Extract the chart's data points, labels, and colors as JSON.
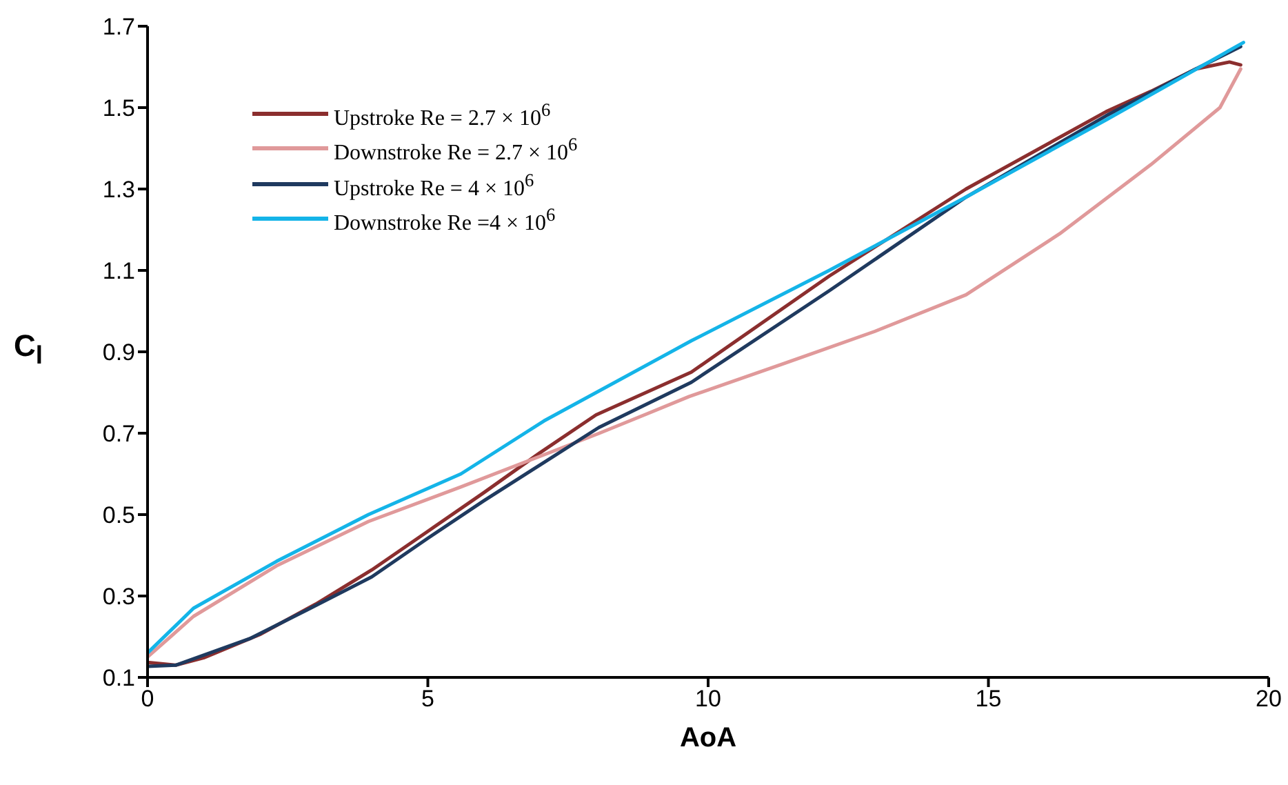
{
  "chart_data": {
    "type": "line",
    "xlabel": "AoA",
    "ylabel": "C$_{l}$",
    "xlim": [
      0,
      20
    ],
    "xticks": [
      0,
      5,
      10,
      15,
      20
    ],
    "ylim": [
      0.1,
      1.7
    ],
    "yticks": [
      0.1,
      0.3,
      0.5,
      0.7,
      0.9,
      1.1,
      1.3,
      1.5,
      1.7
    ],
    "legend": "top left",
    "marker": "none",
    "line_style": "solid",
    "series": [
      {
        "name": "Upstroke Re = 2.7 × 10$^{6}$",
        "color": "#8b2e2e",
        "x": [
          0,
          0.5,
          1,
          2,
          3,
          4,
          5,
          6,
          7,
          8,
          9.7,
          12.16,
          14.6,
          17.1,
          17.9,
          18.7,
          19.3,
          19.5
        ],
        "values": [
          0.137,
          0.13,
          0.148,
          0.205,
          0.28,
          0.364,
          0.459,
          0.554,
          0.652,
          0.745,
          0.85,
          1.086,
          1.3,
          1.49,
          1.54,
          1.595,
          1.612,
          1.605
        ]
      },
      {
        "name": "Downstroke Re = 2.7 × 10$^{6}$",
        "color": "#e0999a",
        "x": [
          0,
          0.82,
          2.3,
          3.94,
          5.59,
          7.24,
          8.06,
          8.9,
          9.66,
          11.33,
          12.97,
          14.6,
          16.27,
          17.9,
          19.13,
          19.5
        ],
        "values": [
          0.15,
          0.25,
          0.374,
          0.483,
          0.568,
          0.656,
          0.7,
          0.747,
          0.79,
          0.87,
          0.95,
          1.04,
          1.19,
          1.36,
          1.5,
          1.595
        ]
      },
      {
        "name": "Upstroke Re = 4 × 10$^{6}$",
        "color": "#1f3a5f",
        "x": [
          0,
          0.5,
          1.82,
          2.85,
          4,
          5,
          6,
          7,
          8.05,
          9.7,
          12.16,
          14.6,
          17.1,
          18.7,
          19.5
        ],
        "values": [
          0.127,
          0.13,
          0.195,
          0.266,
          0.347,
          0.442,
          0.534,
          0.622,
          0.714,
          0.825,
          1.05,
          1.28,
          1.48,
          1.595,
          1.65
        ]
      },
      {
        "name": "Downstroke Re =4 × 10$^{6}$",
        "color": "#14b4e8",
        "x": [
          0,
          0.82,
          2.3,
          3.94,
          5.59,
          7.07,
          9.7,
          12.16,
          14.6,
          17.1,
          19.55
        ],
        "values": [
          0.16,
          0.27,
          0.385,
          0.5,
          0.6,
          0.73,
          0.927,
          1.1,
          1.28,
          1.47,
          1.66
        ]
      }
    ]
  }
}
